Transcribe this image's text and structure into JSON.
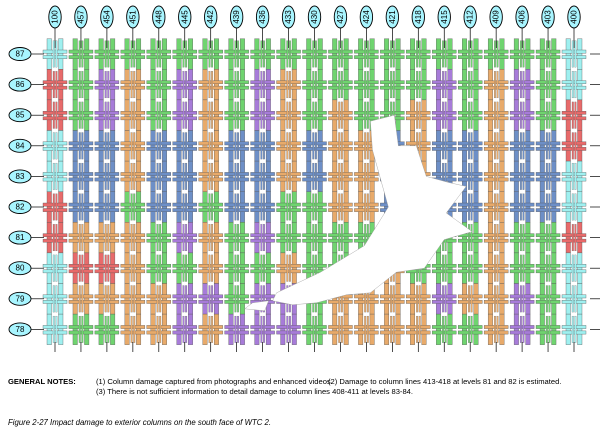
{
  "diagram": {
    "column_lines": [
      "100",
      "457",
      "454",
      "451",
      "448",
      "445",
      "442",
      "439",
      "436",
      "433",
      "430",
      "427",
      "424",
      "421",
      "418",
      "415",
      "412",
      "409",
      "406",
      "403",
      "400"
    ],
    "floor_levels": [
      "87",
      "86",
      "85",
      "84",
      "83",
      "82",
      "81",
      "80",
      "79",
      "78"
    ],
    "legend_colors": {
      "green": "#6fd46f",
      "purple": "#a77bd9",
      "orange": "#e8aa6a",
      "blue": "#6d8fc7",
      "cyan": "#9ff0f0",
      "red": "#e86a6a",
      "outline": "#222222"
    }
  },
  "notes": {
    "header": "GENERAL NOTES:",
    "note1": "(1) Column damage captured from photographs and enhanced videos.",
    "note2": "(2) Damage to column lines 413-418 at levels 81 and 82 is estimated.",
    "note3": "(3) There is not sufficient information to detail damage to column lines 408-411 at levels 83-84."
  },
  "caption": "Figure 2-27 Impact damage to exterior columns on the south face of WTC 2."
}
